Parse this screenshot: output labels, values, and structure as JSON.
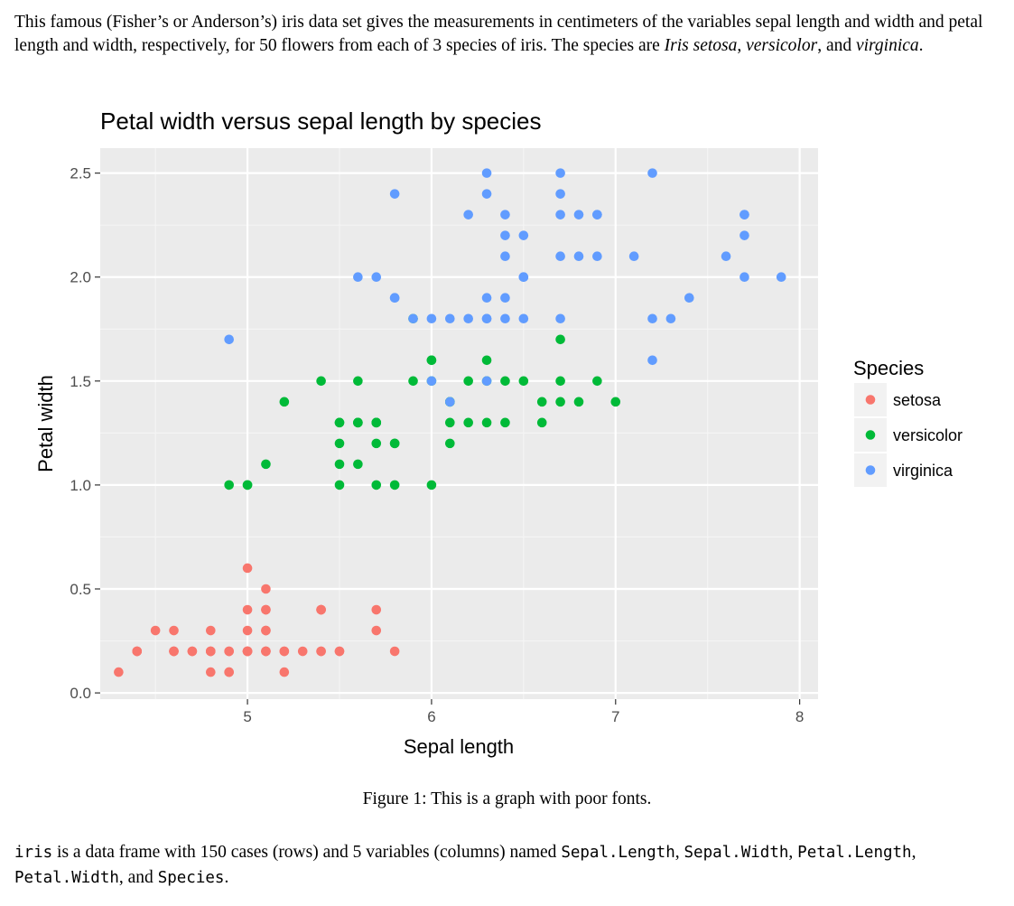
{
  "intro": {
    "p1": "This famous (Fisher’s or Anderson’s) iris data set gives the measurements in centimeters of the variables sepal length and width and petal length and width, respectively, for 50 flowers from each of 3 species of iris. The species are ",
    "setosa": "Iris setosa",
    "comma1": ", ",
    "versicolor": "versicolor",
    "and": ", and ",
    "virginica": "virginica",
    "end": "."
  },
  "caption": "Figure 1: This is a graph with poor fonts.",
  "outro": {
    "v_iris": "iris",
    "t1": " is a data frame with 150 cases (rows) and 5 variables (columns) named ",
    "v_sl": "Sepal.Length",
    "c1": ", ",
    "v_sw": "Sepal.Width",
    "c2": ", ",
    "v_pl": "Petal.Length",
    "c3": ", ",
    "v_pw": "Petal.Width",
    "t2": ", and ",
    "v_sp": "Species",
    "t3": "."
  },
  "chart_data": {
    "type": "scatter",
    "title": "Petal width versus sepal length by species",
    "xlabel": "Sepal length",
    "ylabel": "Petal width",
    "xlim": [
      4.2,
      8.1
    ],
    "ylim": [
      -0.03,
      2.62
    ],
    "xticks": [
      {
        "value": 5,
        "label": "5"
      },
      {
        "value": 6,
        "label": "6"
      },
      {
        "value": 7,
        "label": "7"
      },
      {
        "value": 8,
        "label": "8"
      }
    ],
    "yticks": [
      {
        "value": 0,
        "label": "0.0"
      },
      {
        "value": 0.5,
        "label": "0.5"
      },
      {
        "value": 1.0,
        "label": "1.0"
      },
      {
        "value": 1.5,
        "label": "1.5"
      },
      {
        "value": 2.0,
        "label": "2.0"
      },
      {
        "value": 2.5,
        "label": "2.5"
      }
    ],
    "grid": true,
    "legend": {
      "title": "Species",
      "position": "right"
    },
    "series": [
      {
        "name": "setosa",
        "color": "#F8766D",
        "points": [
          [
            5.1,
            0.2
          ],
          [
            4.9,
            0.2
          ],
          [
            4.7,
            0.2
          ],
          [
            4.6,
            0.2
          ],
          [
            5.0,
            0.2
          ],
          [
            5.4,
            0.4
          ],
          [
            4.6,
            0.3
          ],
          [
            5.0,
            0.2
          ],
          [
            4.4,
            0.2
          ],
          [
            4.9,
            0.1
          ],
          [
            5.4,
            0.2
          ],
          [
            4.8,
            0.2
          ],
          [
            4.8,
            0.1
          ],
          [
            4.3,
            0.1
          ],
          [
            5.8,
            0.2
          ],
          [
            5.7,
            0.4
          ],
          [
            5.4,
            0.4
          ],
          [
            5.1,
            0.3
          ],
          [
            5.7,
            0.3
          ],
          [
            5.1,
            0.3
          ],
          [
            5.4,
            0.2
          ],
          [
            5.1,
            0.4
          ],
          [
            4.6,
            0.2
          ],
          [
            5.1,
            0.5
          ],
          [
            4.8,
            0.2
          ],
          [
            5.0,
            0.2
          ],
          [
            5.0,
            0.4
          ],
          [
            5.2,
            0.2
          ],
          [
            5.2,
            0.2
          ],
          [
            4.7,
            0.2
          ],
          [
            4.8,
            0.2
          ],
          [
            5.4,
            0.4
          ],
          [
            5.2,
            0.1
          ],
          [
            5.5,
            0.2
          ],
          [
            4.9,
            0.2
          ],
          [
            5.0,
            0.2
          ],
          [
            5.5,
            0.2
          ],
          [
            4.9,
            0.1
          ],
          [
            4.4,
            0.2
          ],
          [
            5.1,
            0.2
          ],
          [
            5.0,
            0.3
          ],
          [
            4.5,
            0.3
          ],
          [
            4.4,
            0.2
          ],
          [
            5.0,
            0.6
          ],
          [
            5.1,
            0.4
          ],
          [
            4.8,
            0.3
          ],
          [
            5.1,
            0.2
          ],
          [
            4.6,
            0.2
          ],
          [
            5.3,
            0.2
          ],
          [
            5.0,
            0.2
          ]
        ]
      },
      {
        "name": "versicolor",
        "color": "#00BA38",
        "points": [
          [
            7.0,
            1.4
          ],
          [
            6.4,
            1.5
          ],
          [
            6.9,
            1.5
          ],
          [
            5.5,
            1.3
          ],
          [
            6.5,
            1.5
          ],
          [
            5.7,
            1.3
          ],
          [
            6.3,
            1.6
          ],
          [
            4.9,
            1.0
          ],
          [
            6.6,
            1.3
          ],
          [
            5.2,
            1.4
          ],
          [
            5.0,
            1.0
          ],
          [
            5.9,
            1.5
          ],
          [
            6.0,
            1.0
          ],
          [
            6.1,
            1.4
          ],
          [
            5.6,
            1.3
          ],
          [
            6.7,
            1.4
          ],
          [
            5.6,
            1.5
          ],
          [
            5.8,
            1.0
          ],
          [
            6.2,
            1.5
          ],
          [
            5.6,
            1.1
          ],
          [
            5.9,
            1.8
          ],
          [
            6.1,
            1.3
          ],
          [
            6.3,
            1.5
          ],
          [
            6.1,
            1.2
          ],
          [
            6.4,
            1.3
          ],
          [
            6.6,
            1.4
          ],
          [
            6.8,
            1.4
          ],
          [
            6.7,
            1.7
          ],
          [
            6.0,
            1.5
          ],
          [
            5.7,
            1.0
          ],
          [
            5.5,
            1.1
          ],
          [
            5.5,
            1.0
          ],
          [
            5.8,
            1.2
          ],
          [
            6.0,
            1.6
          ],
          [
            5.4,
            1.5
          ],
          [
            6.0,
            1.6
          ],
          [
            6.7,
            1.5
          ],
          [
            6.3,
            1.3
          ],
          [
            5.6,
            1.3
          ],
          [
            5.5,
            1.3
          ],
          [
            5.5,
            1.2
          ],
          [
            6.1,
            1.4
          ],
          [
            5.8,
            1.2
          ],
          [
            5.0,
            1.0
          ],
          [
            5.6,
            1.3
          ],
          [
            5.7,
            1.2
          ],
          [
            5.7,
            1.3
          ],
          [
            6.2,
            1.3
          ],
          [
            5.1,
            1.1
          ],
          [
            5.7,
            1.3
          ]
        ]
      },
      {
        "name": "virginica",
        "color": "#619CFF",
        "points": [
          [
            6.3,
            2.5
          ],
          [
            5.8,
            1.9
          ],
          [
            7.1,
            2.1
          ],
          [
            6.3,
            1.8
          ],
          [
            6.5,
            2.2
          ],
          [
            7.6,
            2.1
          ],
          [
            4.9,
            1.7
          ],
          [
            7.3,
            1.8
          ],
          [
            6.7,
            1.8
          ],
          [
            7.2,
            2.5
          ],
          [
            6.5,
            2.0
          ],
          [
            6.4,
            1.9
          ],
          [
            6.8,
            2.1
          ],
          [
            5.7,
            2.0
          ],
          [
            5.8,
            2.4
          ],
          [
            6.4,
            2.3
          ],
          [
            6.5,
            1.8
          ],
          [
            7.7,
            2.2
          ],
          [
            7.7,
            2.3
          ],
          [
            6.0,
            1.5
          ],
          [
            6.9,
            2.3
          ],
          [
            5.6,
            2.0
          ],
          [
            7.7,
            2.0
          ],
          [
            6.3,
            1.8
          ],
          [
            6.7,
            2.1
          ],
          [
            7.2,
            1.8
          ],
          [
            6.2,
            1.8
          ],
          [
            6.1,
            1.8
          ],
          [
            6.4,
            2.1
          ],
          [
            7.2,
            1.6
          ],
          [
            7.4,
            1.9
          ],
          [
            7.9,
            2.0
          ],
          [
            6.4,
            2.2
          ],
          [
            6.3,
            1.5
          ],
          [
            6.1,
            1.4
          ],
          [
            7.7,
            2.3
          ],
          [
            6.3,
            2.4
          ],
          [
            6.4,
            1.8
          ],
          [
            6.0,
            1.8
          ],
          [
            6.9,
            2.1
          ],
          [
            6.7,
            2.4
          ],
          [
            6.9,
            2.3
          ],
          [
            5.8,
            1.9
          ],
          [
            6.8,
            2.3
          ],
          [
            6.7,
            2.5
          ],
          [
            6.7,
            2.3
          ],
          [
            6.3,
            1.9
          ],
          [
            6.5,
            2.0
          ],
          [
            6.2,
            2.3
          ],
          [
            5.9,
            1.8
          ]
        ]
      }
    ]
  }
}
